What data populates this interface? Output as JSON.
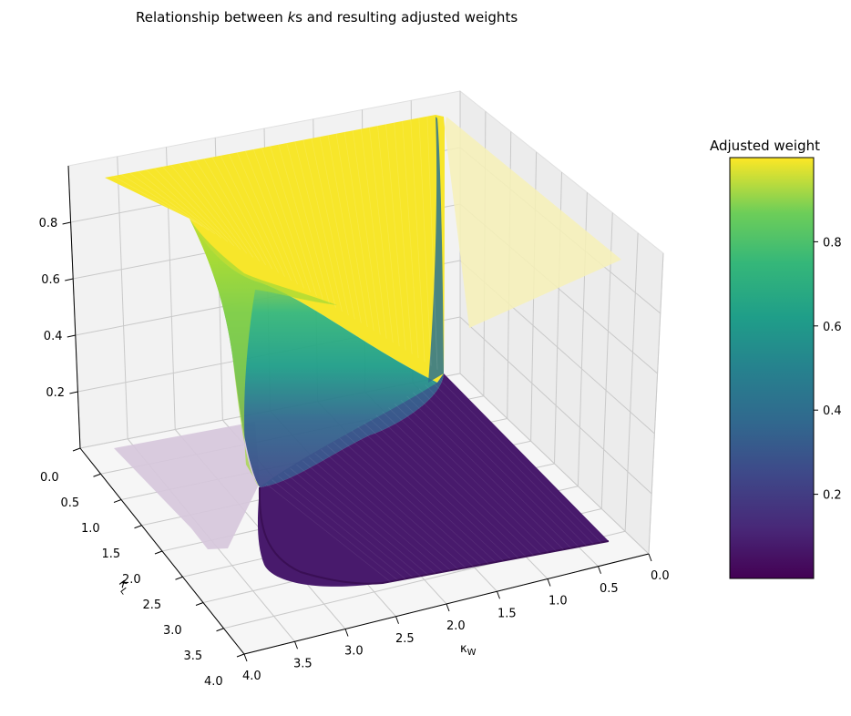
{
  "chart_data": {
    "type": "surface3d",
    "title_prefix": "Relationship between ",
    "title_math": "k",
    "title_suffix": "s and resulting adjusted weights",
    "xlabel": "κ_W",
    "ylabel": "κ_L",
    "x_axis": {
      "label": "κ",
      "label_sub": "W",
      "range": [
        0,
        4
      ],
      "ticks": [
        0.0,
        0.5,
        1.0,
        1.5,
        2.0,
        2.5,
        3.0,
        3.5,
        4.0
      ],
      "tick_labels": [
        "0.0",
        "0.5",
        "1.0",
        "1.5",
        "2.0",
        "2.5",
        "3.0",
        "3.5",
        "4.0"
      ]
    },
    "y_axis": {
      "label": "κ",
      "label_sub": "L",
      "range": [
        0,
        4
      ],
      "ticks": [
        0.0,
        0.5,
        1.0,
        1.5,
        2.0,
        2.5,
        3.0,
        3.5,
        4.0
      ],
      "tick_labels": [
        "0.0",
        "0.5",
        "1.0",
        "1.5",
        "2.0",
        "2.5",
        "3.0",
        "3.5",
        "4.0"
      ]
    },
    "z_axis": {
      "range": [
        0,
        1
      ],
      "ticks": [
        0.2,
        0.4,
        0.6,
        0.8
      ],
      "tick_labels": [
        "0.2",
        "0.4",
        "0.6",
        "0.8"
      ]
    },
    "colormap": "viridis",
    "surface_samples": {
      "description_of_levels": "z at selected (κW, κL) grid points",
      "kW": [
        0.0,
        0.5,
        1.0,
        2.0,
        3.0,
        4.0
      ],
      "kL": [
        0.0,
        0.5,
        1.0,
        2.0,
        3.0,
        4.0
      ],
      "z": [
        [
          0.0,
          0.0,
          0.0,
          0.0,
          0.0,
          0.0
        ],
        [
          1.0,
          0.5,
          0.12,
          0.01,
          0.0,
          0.0
        ],
        [
          1.0,
          0.88,
          0.5,
          0.06,
          0.01,
          0.0
        ],
        [
          1.0,
          0.99,
          0.94,
          0.5,
          0.12,
          0.03
        ],
        [
          1.0,
          1.0,
          0.99,
          0.88,
          0.5,
          0.2
        ],
        [
          1.0,
          1.0,
          1.0,
          0.97,
          0.8,
          0.5
        ]
      ]
    },
    "grid": true,
    "colorbar": {
      "title": "Adjusted weight",
      "range": [
        0,
        1
      ],
      "ticks": [
        0.2,
        0.4,
        0.6,
        0.8
      ],
      "tick_labels": [
        "0.2",
        "0.4",
        "0.6",
        "0.8"
      ]
    },
    "colors": {
      "pane": "#f2f2f2",
      "pane_edge": "#e6e6e6",
      "grid": "#c8c8c8",
      "shadow_yellow": "#f7f1b7",
      "shadow_purple": "#dccfe0"
    }
  }
}
